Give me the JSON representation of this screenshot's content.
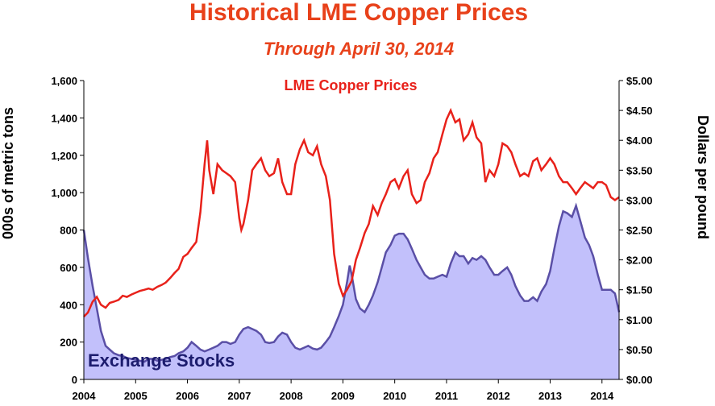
{
  "colors": {
    "title": "#e8411a",
    "price_line": "#e8211a",
    "stocks_line": "#5a4fa6",
    "stocks_fill": "#c2c0fb",
    "stocks_label": "#1c1c6e"
  },
  "chart_data": {
    "type": "line",
    "title": "Historical LME Copper Prices",
    "subtitle": "Through April 30, 2014",
    "x_ticks": [
      "2004",
      "2005",
      "2006",
      "2007",
      "2008",
      "2009",
      "2010",
      "2011",
      "2012",
      "2013",
      "2014"
    ],
    "xlim": [
      2004.0,
      2014.33
    ],
    "left_axis": {
      "label": "000s of metric tons",
      "ticks": [
        "0",
        "200",
        "400",
        "600",
        "800",
        "1,000",
        "1,200",
        "1,400",
        "1,600"
      ],
      "ylim": [
        0,
        1600
      ]
    },
    "right_axis": {
      "label": "Dollars per pound",
      "ticks": [
        "$0.00",
        "$0.50",
        "$1.00",
        "$1.50",
        "$2.00",
        "$2.50",
        "$3.00",
        "$3.50",
        "$4.00",
        "$4.50",
        "$5.00"
      ],
      "ylim": [
        0,
        5
      ]
    },
    "series": [
      {
        "name": "LME Copper Prices",
        "axis": "right",
        "style": "line",
        "points": [
          [
            2004.0,
            1.05
          ],
          [
            2004.08,
            1.12
          ],
          [
            2004.17,
            1.3
          ],
          [
            2004.25,
            1.38
          ],
          [
            2004.33,
            1.25
          ],
          [
            2004.42,
            1.2
          ],
          [
            2004.5,
            1.28
          ],
          [
            2004.58,
            1.3
          ],
          [
            2004.67,
            1.33
          ],
          [
            2004.75,
            1.4
          ],
          [
            2004.83,
            1.38
          ],
          [
            2004.92,
            1.42
          ],
          [
            2005.0,
            1.45
          ],
          [
            2005.08,
            1.48
          ],
          [
            2005.17,
            1.5
          ],
          [
            2005.25,
            1.52
          ],
          [
            2005.33,
            1.5
          ],
          [
            2005.42,
            1.55
          ],
          [
            2005.5,
            1.58
          ],
          [
            2005.58,
            1.62
          ],
          [
            2005.67,
            1.7
          ],
          [
            2005.75,
            1.78
          ],
          [
            2005.83,
            1.85
          ],
          [
            2005.92,
            2.05
          ],
          [
            2006.0,
            2.1
          ],
          [
            2006.08,
            2.2
          ],
          [
            2006.17,
            2.3
          ],
          [
            2006.25,
            2.8
          ],
          [
            2006.33,
            3.6
          ],
          [
            2006.38,
            4.0
          ],
          [
            2006.42,
            3.5
          ],
          [
            2006.5,
            3.1
          ],
          [
            2006.58,
            3.6
          ],
          [
            2006.67,
            3.5
          ],
          [
            2006.75,
            3.45
          ],
          [
            2006.83,
            3.4
          ],
          [
            2006.92,
            3.3
          ],
          [
            2007.0,
            2.7
          ],
          [
            2007.04,
            2.5
          ],
          [
            2007.08,
            2.6
          ],
          [
            2007.17,
            3.0
          ],
          [
            2007.25,
            3.5
          ],
          [
            2007.33,
            3.6
          ],
          [
            2007.42,
            3.7
          ],
          [
            2007.5,
            3.5
          ],
          [
            2007.58,
            3.4
          ],
          [
            2007.67,
            3.45
          ],
          [
            2007.75,
            3.7
          ],
          [
            2007.83,
            3.3
          ],
          [
            2007.92,
            3.1
          ],
          [
            2008.0,
            3.1
          ],
          [
            2008.08,
            3.6
          ],
          [
            2008.17,
            3.85
          ],
          [
            2008.25,
            4.0
          ],
          [
            2008.33,
            3.8
          ],
          [
            2008.42,
            3.75
          ],
          [
            2008.5,
            3.9
          ],
          [
            2008.58,
            3.6
          ],
          [
            2008.67,
            3.4
          ],
          [
            2008.75,
            3.0
          ],
          [
            2008.83,
            2.1
          ],
          [
            2008.92,
            1.6
          ],
          [
            2009.0,
            1.4
          ],
          [
            2009.08,
            1.5
          ],
          [
            2009.17,
            1.65
          ],
          [
            2009.25,
            2.0
          ],
          [
            2009.33,
            2.2
          ],
          [
            2009.42,
            2.45
          ],
          [
            2009.5,
            2.6
          ],
          [
            2009.58,
            2.9
          ],
          [
            2009.67,
            2.75
          ],
          [
            2009.75,
            2.95
          ],
          [
            2009.83,
            3.1
          ],
          [
            2009.92,
            3.3
          ],
          [
            2010.0,
            3.35
          ],
          [
            2010.08,
            3.2
          ],
          [
            2010.17,
            3.4
          ],
          [
            2010.25,
            3.5
          ],
          [
            2010.33,
            3.1
          ],
          [
            2010.42,
            2.95
          ],
          [
            2010.5,
            3.0
          ],
          [
            2010.58,
            3.3
          ],
          [
            2010.67,
            3.45
          ],
          [
            2010.75,
            3.7
          ],
          [
            2010.83,
            3.8
          ],
          [
            2010.92,
            4.1
          ],
          [
            2011.0,
            4.35
          ],
          [
            2011.08,
            4.5
          ],
          [
            2011.17,
            4.3
          ],
          [
            2011.25,
            4.35
          ],
          [
            2011.33,
            4.0
          ],
          [
            2011.42,
            4.1
          ],
          [
            2011.5,
            4.3
          ],
          [
            2011.58,
            4.05
          ],
          [
            2011.67,
            3.95
          ],
          [
            2011.75,
            3.3
          ],
          [
            2011.83,
            3.5
          ],
          [
            2011.92,
            3.4
          ],
          [
            2012.0,
            3.6
          ],
          [
            2012.08,
            3.95
          ],
          [
            2012.17,
            3.9
          ],
          [
            2012.25,
            3.8
          ],
          [
            2012.33,
            3.6
          ],
          [
            2012.42,
            3.4
          ],
          [
            2012.5,
            3.45
          ],
          [
            2012.58,
            3.4
          ],
          [
            2012.67,
            3.65
          ],
          [
            2012.75,
            3.7
          ],
          [
            2012.83,
            3.5
          ],
          [
            2012.92,
            3.6
          ],
          [
            2013.0,
            3.7
          ],
          [
            2013.08,
            3.6
          ],
          [
            2013.17,
            3.4
          ],
          [
            2013.25,
            3.3
          ],
          [
            2013.33,
            3.3
          ],
          [
            2013.42,
            3.2
          ],
          [
            2013.5,
            3.1
          ],
          [
            2013.58,
            3.2
          ],
          [
            2013.67,
            3.3
          ],
          [
            2013.75,
            3.25
          ],
          [
            2013.83,
            3.2
          ],
          [
            2013.92,
            3.3
          ],
          [
            2014.0,
            3.3
          ],
          [
            2014.08,
            3.25
          ],
          [
            2014.17,
            3.05
          ],
          [
            2014.25,
            3.0
          ],
          [
            2014.33,
            3.05
          ]
        ]
      },
      {
        "name": "Exchange Stocks",
        "axis": "left",
        "style": "area",
        "points": [
          [
            2004.0,
            800
          ],
          [
            2004.08,
            650
          ],
          [
            2004.17,
            500
          ],
          [
            2004.25,
            380
          ],
          [
            2004.33,
            260
          ],
          [
            2004.42,
            180
          ],
          [
            2004.5,
            160
          ],
          [
            2004.58,
            140
          ],
          [
            2004.67,
            130
          ],
          [
            2004.75,
            125
          ],
          [
            2004.83,
            115
          ],
          [
            2004.92,
            110
          ],
          [
            2005.0,
            105
          ],
          [
            2005.08,
            100
          ],
          [
            2005.17,
            95
          ],
          [
            2005.25,
            110
          ],
          [
            2005.33,
            110
          ],
          [
            2005.42,
            100
          ],
          [
            2005.5,
            105
          ],
          [
            2005.58,
            110
          ],
          [
            2005.67,
            120
          ],
          [
            2005.75,
            125
          ],
          [
            2005.83,
            140
          ],
          [
            2005.92,
            150
          ],
          [
            2006.0,
            170
          ],
          [
            2006.08,
            200
          ],
          [
            2006.17,
            180
          ],
          [
            2006.25,
            160
          ],
          [
            2006.33,
            150
          ],
          [
            2006.42,
            160
          ],
          [
            2006.5,
            170
          ],
          [
            2006.58,
            180
          ],
          [
            2006.67,
            200
          ],
          [
            2006.75,
            200
          ],
          [
            2006.83,
            190
          ],
          [
            2006.92,
            200
          ],
          [
            2007.0,
            240
          ],
          [
            2007.08,
            270
          ],
          [
            2007.17,
            280
          ],
          [
            2007.25,
            270
          ],
          [
            2007.33,
            260
          ],
          [
            2007.42,
            240
          ],
          [
            2007.5,
            200
          ],
          [
            2007.58,
            195
          ],
          [
            2007.67,
            200
          ],
          [
            2007.75,
            230
          ],
          [
            2007.83,
            250
          ],
          [
            2007.92,
            240
          ],
          [
            2008.0,
            200
          ],
          [
            2008.08,
            170
          ],
          [
            2008.17,
            160
          ],
          [
            2008.25,
            170
          ],
          [
            2008.33,
            180
          ],
          [
            2008.42,
            165
          ],
          [
            2008.5,
            160
          ],
          [
            2008.58,
            170
          ],
          [
            2008.67,
            200
          ],
          [
            2008.75,
            230
          ],
          [
            2008.83,
            280
          ],
          [
            2008.92,
            340
          ],
          [
            2009.0,
            400
          ],
          [
            2009.08,
            520
          ],
          [
            2009.13,
            610
          ],
          [
            2009.17,
            560
          ],
          [
            2009.25,
            430
          ],
          [
            2009.33,
            380
          ],
          [
            2009.42,
            360
          ],
          [
            2009.5,
            400
          ],
          [
            2009.58,
            450
          ],
          [
            2009.67,
            520
          ],
          [
            2009.75,
            600
          ],
          [
            2009.83,
            680
          ],
          [
            2009.92,
            720
          ],
          [
            2010.0,
            770
          ],
          [
            2010.08,
            780
          ],
          [
            2010.17,
            780
          ],
          [
            2010.25,
            750
          ],
          [
            2010.33,
            700
          ],
          [
            2010.42,
            640
          ],
          [
            2010.5,
            600
          ],
          [
            2010.58,
            560
          ],
          [
            2010.67,
            540
          ],
          [
            2010.75,
            540
          ],
          [
            2010.83,
            550
          ],
          [
            2010.92,
            560
          ],
          [
            2011.0,
            550
          ],
          [
            2011.08,
            620
          ],
          [
            2011.17,
            680
          ],
          [
            2011.25,
            660
          ],
          [
            2011.33,
            660
          ],
          [
            2011.42,
            620
          ],
          [
            2011.5,
            650
          ],
          [
            2011.58,
            640
          ],
          [
            2011.67,
            660
          ],
          [
            2011.75,
            640
          ],
          [
            2011.83,
            600
          ],
          [
            2011.92,
            560
          ],
          [
            2012.0,
            560
          ],
          [
            2012.08,
            580
          ],
          [
            2012.17,
            600
          ],
          [
            2012.25,
            560
          ],
          [
            2012.33,
            500
          ],
          [
            2012.42,
            450
          ],
          [
            2012.5,
            420
          ],
          [
            2012.58,
            420
          ],
          [
            2012.67,
            440
          ],
          [
            2012.75,
            420
          ],
          [
            2012.83,
            470
          ],
          [
            2012.92,
            510
          ],
          [
            2013.0,
            580
          ],
          [
            2013.08,
            700
          ],
          [
            2013.17,
            820
          ],
          [
            2013.25,
            900
          ],
          [
            2013.33,
            890
          ],
          [
            2013.42,
            870
          ],
          [
            2013.5,
            930
          ],
          [
            2013.58,
            850
          ],
          [
            2013.67,
            760
          ],
          [
            2013.75,
            720
          ],
          [
            2013.83,
            660
          ],
          [
            2013.92,
            560
          ],
          [
            2014.0,
            480
          ],
          [
            2014.08,
            480
          ],
          [
            2014.17,
            480
          ],
          [
            2014.25,
            460
          ],
          [
            2014.33,
            360
          ]
        ]
      }
    ],
    "grid": false,
    "legend": "inline labels"
  }
}
